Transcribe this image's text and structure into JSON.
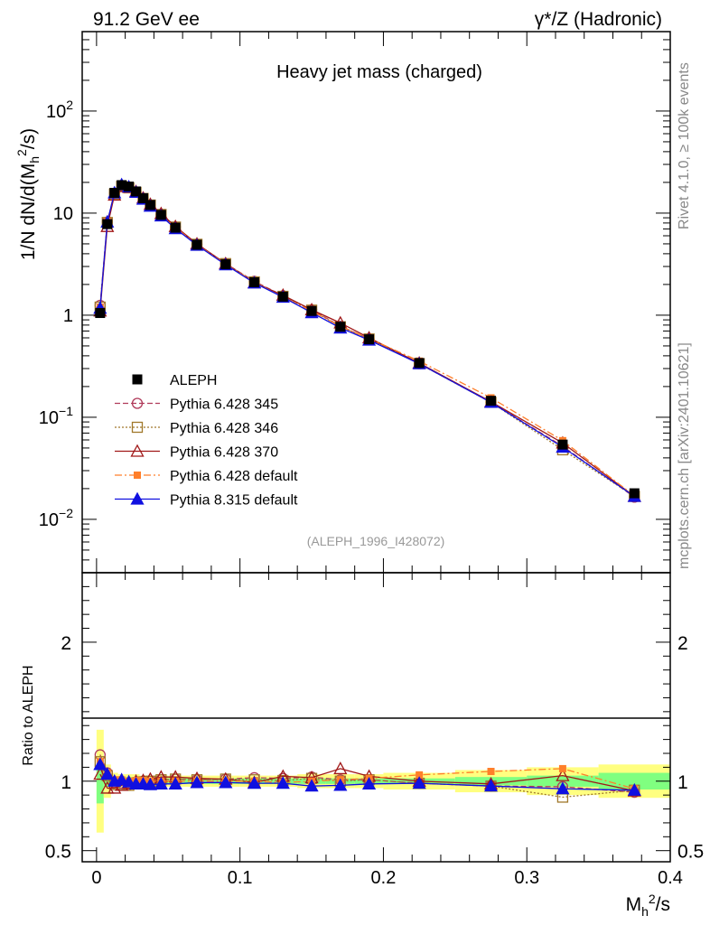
{
  "header": {
    "left": "91.2 GeV ee",
    "right": "γ*/Z (Hadronic)"
  },
  "side_labels": {
    "rivet": "Rivet 4.1.0, ≥ 100k events",
    "mcplots": "mcplots.cern.ch [arXiv:2401.10621]"
  },
  "colors": {
    "aleph": "#000000",
    "p345": "#b03a5a",
    "p346": "#a0782a",
    "p370": "#a01818",
    "p6def": "#ff7f2a",
    "p8def": "#1010e0",
    "band_green": "#80ff80",
    "band_yellow": "#ffff80"
  },
  "chart_data": [
    {
      "type": "line",
      "panel": "main",
      "title": "Heavy jet mass (charged)",
      "xlabel": "M_h^2/s",
      "ylabel": "1/N dN/d(M_h^2/s)",
      "yscale": "log",
      "xlim": [
        -0.01,
        0.4
      ],
      "ylim": [
        0.003,
        600
      ],
      "y_ticks": [
        {
          "value": 0.01,
          "label": "10^-2"
        },
        {
          "value": 0.1,
          "label": "10^-1"
        },
        {
          "value": 1,
          "label": "1"
        },
        {
          "value": 10,
          "label": "10"
        },
        {
          "value": 100,
          "label": "10^2"
        }
      ],
      "analysis_tag": "(ALEPH_1996_I428072)",
      "x": [
        0.0025,
        0.0075,
        0.0125,
        0.0175,
        0.0225,
        0.0275,
        0.0325,
        0.0375,
        0.045,
        0.055,
        0.07,
        0.09,
        0.11,
        0.13,
        0.15,
        0.17,
        0.19,
        0.225,
        0.275,
        0.325,
        0.375
      ],
      "series": [
        {
          "name": "ALEPH",
          "key": "aleph",
          "marker": "square-filled",
          "line": "none",
          "values": [
            1.05,
            7.8,
            15.8,
            18.8,
            18.2,
            16.3,
            14.0,
            12.0,
            9.6,
            7.2,
            4.9,
            3.15,
            2.1,
            1.52,
            1.1,
            0.77,
            0.58,
            0.34,
            0.145,
            0.054,
            0.018
          ]
        },
        {
          "name": "Pythia 6.428 345",
          "key": "p345",
          "marker": "circle-open",
          "line": "dashed",
          "values": [
            1.25,
            8.2,
            15.6,
            18.5,
            17.8,
            16.1,
            14.0,
            12.0,
            9.7,
            7.3,
            4.95,
            3.2,
            2.15,
            1.55,
            1.13,
            0.78,
            0.585,
            0.335,
            0.14,
            0.052,
            0.0165
          ]
        },
        {
          "name": "Pythia 6.428 346",
          "key": "p346",
          "marker": "square-open",
          "line": "dotted",
          "values": [
            1.2,
            8.1,
            15.4,
            18.3,
            17.7,
            16.0,
            13.9,
            12.0,
            9.7,
            7.3,
            4.95,
            3.2,
            2.12,
            1.53,
            1.12,
            0.77,
            0.585,
            0.335,
            0.14,
            0.048,
            0.0168
          ]
        },
        {
          "name": "Pythia 6.428 370",
          "key": "p370",
          "marker": "triangle-open",
          "line": "solid",
          "values": [
            1.1,
            7.4,
            15.0,
            18.2,
            17.9,
            16.3,
            14.1,
            12.2,
            9.9,
            7.4,
            5.0,
            3.2,
            2.08,
            1.57,
            1.13,
            0.84,
            0.6,
            0.34,
            0.142,
            0.056,
            0.0168
          ]
        },
        {
          "name": "Pythia 6.428 default",
          "key": "p6def",
          "marker": "square-filled",
          "line": "dashdot",
          "values": [
            1.2,
            8.3,
            16.0,
            19.0,
            18.3,
            16.4,
            14.1,
            12.0,
            9.6,
            7.2,
            4.9,
            3.15,
            2.1,
            1.5,
            1.1,
            0.78,
            0.59,
            0.355,
            0.155,
            0.059,
            0.017
          ]
        },
        {
          "name": "Pythia 8.315 default",
          "key": "p8def",
          "marker": "triangle-filled",
          "line": "solid",
          "values": [
            1.17,
            8.2,
            15.8,
            19.0,
            18.1,
            16.0,
            13.7,
            11.7,
            9.4,
            7.05,
            4.85,
            3.12,
            2.07,
            1.5,
            1.06,
            0.75,
            0.57,
            0.335,
            0.14,
            0.051,
            0.0168
          ]
        }
      ]
    },
    {
      "type": "line",
      "panel": "ratio",
      "ylabel": "Ratio to ALEPH",
      "xlabel": "M_h^2/s",
      "xlim": [
        -0.01,
        0.4
      ],
      "ylim": [
        0.42,
        2.5
      ],
      "x_ticks": [
        {
          "value": 0,
          "label": "0"
        },
        {
          "value": 0.1,
          "label": "0.1"
        },
        {
          "value": 0.2,
          "label": "0.2"
        },
        {
          "value": 0.3,
          "label": "0.3"
        },
        {
          "value": 0.4,
          "label": "0.4"
        }
      ],
      "y_ticks": [
        {
          "value": 0.5,
          "label": "0.5"
        },
        {
          "value": 1,
          "label": "1"
        },
        {
          "value": 2,
          "label": "2"
        }
      ],
      "bin_edges": [
        0,
        0.005,
        0.01,
        0.015,
        0.02,
        0.025,
        0.03,
        0.035,
        0.04,
        0.05,
        0.06,
        0.08,
        0.1,
        0.12,
        0.14,
        0.16,
        0.18,
        0.2,
        0.25,
        0.3,
        0.35,
        0.4
      ],
      "band_inner": [
        0.16,
        0.04,
        0.03,
        0.03,
        0.03,
        0.03,
        0.02,
        0.02,
        0.02,
        0.02,
        0.02,
        0.02,
        0.02,
        0.02,
        0.02,
        0.02,
        0.02,
        0.02,
        0.03,
        0.04,
        0.06
      ],
      "band_outer": [
        0.37,
        0.12,
        0.06,
        0.05,
        0.05,
        0.05,
        0.04,
        0.04,
        0.04,
        0.04,
        0.04,
        0.04,
        0.04,
        0.04,
        0.05,
        0.05,
        0.05,
        0.06,
        0.08,
        0.1,
        0.12
      ],
      "x": [
        0.0025,
        0.0075,
        0.0125,
        0.0175,
        0.0225,
        0.0275,
        0.0325,
        0.0375,
        0.045,
        0.055,
        0.07,
        0.09,
        0.11,
        0.13,
        0.15,
        0.17,
        0.19,
        0.225,
        0.275,
        0.325,
        0.375
      ],
      "series": [
        {
          "name": "Pythia 6.428 345",
          "key": "p345",
          "marker": "circle-open",
          "line": "dashed",
          "values": [
            1.19,
            1.06,
            0.99,
            0.985,
            0.975,
            0.985,
            1.0,
            1.0,
            1.01,
            1.015,
            1.01,
            1.015,
            1.025,
            1.02,
            1.03,
            1.01,
            1.01,
            0.985,
            0.965,
            0.96,
            0.92
          ]
        },
        {
          "name": "Pythia 6.428 346",
          "key": "p346",
          "marker": "square-open",
          "line": "dotted",
          "values": [
            1.14,
            1.04,
            0.975,
            0.975,
            0.97,
            0.98,
            0.995,
            1.0,
            1.01,
            1.015,
            1.01,
            1.015,
            1.01,
            1.005,
            1.02,
            1.0,
            1.01,
            0.985,
            0.965,
            0.885,
            0.935
          ]
        },
        {
          "name": "Pythia 6.428 370",
          "key": "p370",
          "marker": "triangle-open",
          "line": "solid",
          "values": [
            1.05,
            0.95,
            0.95,
            0.97,
            0.985,
            1.0,
            1.005,
            1.015,
            1.03,
            1.03,
            1.02,
            1.015,
            0.99,
            1.035,
            1.025,
            1.09,
            1.035,
            1.0,
            0.98,
            1.04,
            0.93
          ]
        },
        {
          "name": "Pythia 6.428 default",
          "key": "p6def",
          "marker": "square-filled",
          "line": "dashdot",
          "values": [
            1.14,
            1.06,
            1.01,
            1.01,
            1.0,
            1.005,
            1.005,
            1.0,
            1.0,
            1.0,
            1.0,
            1.0,
            1.0,
            0.99,
            1.0,
            1.01,
            1.02,
            1.045,
            1.07,
            1.09,
            0.945
          ]
        },
        {
          "name": "Pythia 8.315 default",
          "key": "p8def",
          "marker": "triangle-filled",
          "line": "solid",
          "values": [
            1.12,
            1.05,
            1.0,
            1.01,
            0.995,
            0.98,
            0.98,
            0.975,
            0.98,
            0.98,
            0.99,
            0.99,
            0.985,
            0.985,
            0.965,
            0.97,
            0.98,
            0.985,
            0.965,
            0.945,
            0.935
          ]
        }
      ]
    }
  ]
}
